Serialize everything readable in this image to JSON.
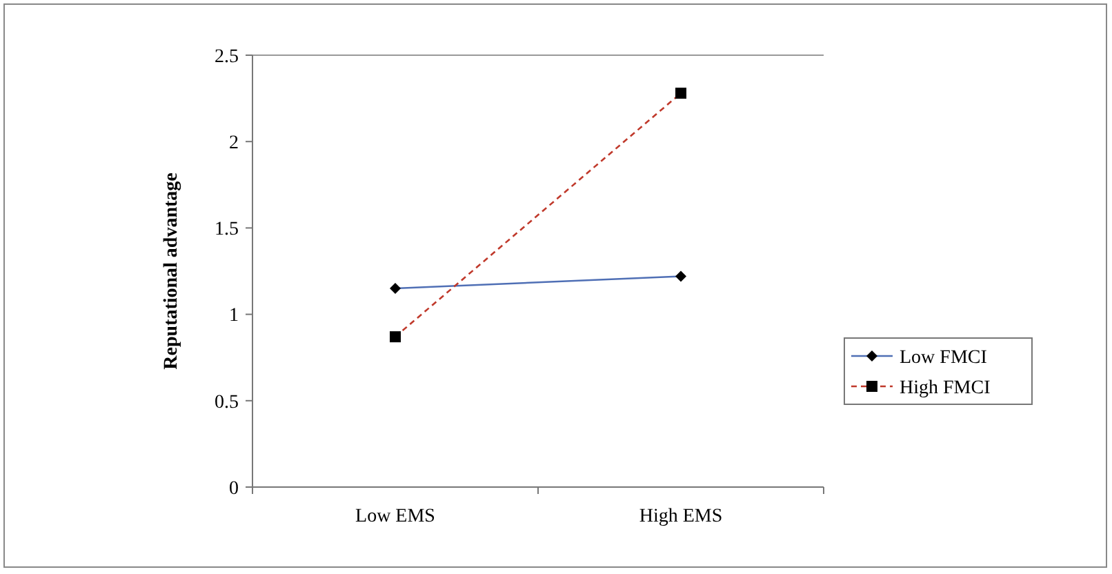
{
  "chart_data": {
    "type": "line",
    "ylabel": "Reputational advantage",
    "categories": [
      "Low EMS",
      "High EMS"
    ],
    "series": [
      {
        "name": "Low FMCI",
        "color": "#4f6fb5",
        "values": [
          1.15,
          1.22
        ],
        "marker": "diamond",
        "line_style": "solid"
      },
      {
        "name": "High FMCI",
        "color": "#c0392b",
        "values": [
          0.87,
          2.28
        ],
        "marker": "square",
        "line_style": "dashed"
      }
    ],
    "ylim": [
      0,
      2.5
    ],
    "yticks": [
      0,
      {
        "value": 0.5,
        "label": "0.5"
      },
      1,
      {
        "value": 1.5,
        "label": "1.5"
      },
      2,
      {
        "value": 2.5,
        "label": "2.5"
      }
    ],
    "grid": false,
    "legend": "right"
  }
}
